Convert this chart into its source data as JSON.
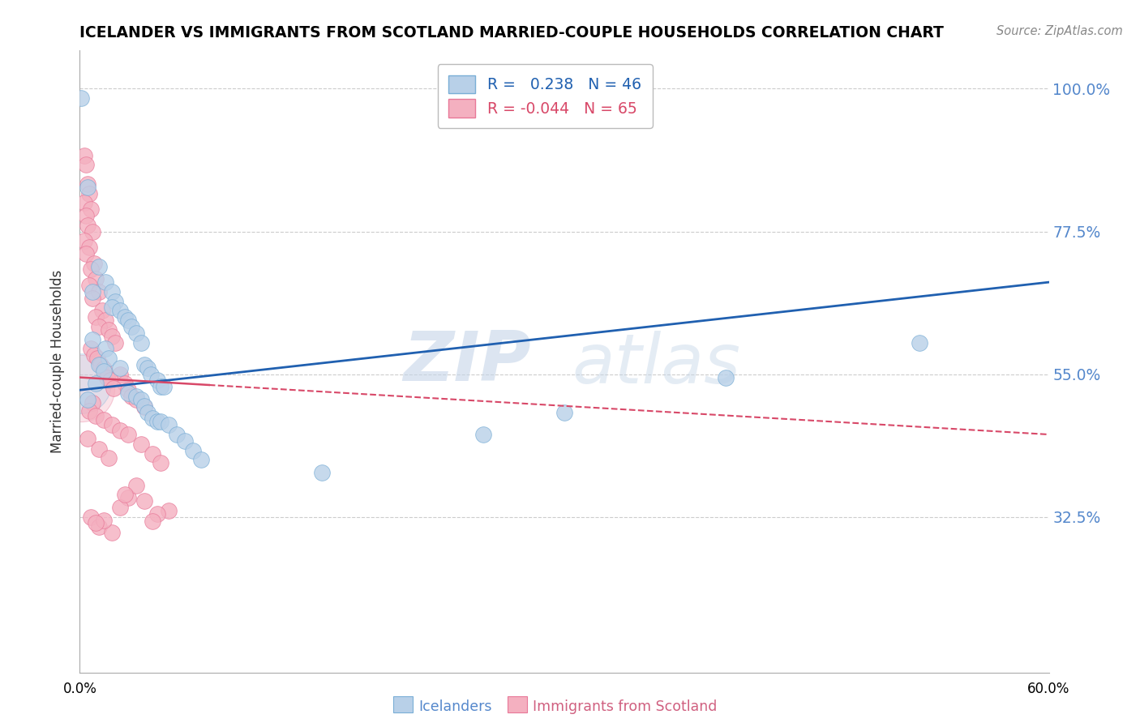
{
  "title": "ICELANDER VS IMMIGRANTS FROM SCOTLAND MARRIED-COUPLE HOUSEHOLDS CORRELATION CHART",
  "source": "Source: ZipAtlas.com",
  "ylabel": "Married-couple Households",
  "xlim": [
    0.0,
    0.6
  ],
  "ylim": [
    0.08,
    1.06
  ],
  "blue_R": 0.238,
  "blue_N": 46,
  "pink_R": -0.044,
  "pink_N": 65,
  "blue_label": "Icelanders",
  "pink_label": "Immigrants from Scotland",
  "blue_color": "#b8d0e8",
  "blue_edge": "#7aaed6",
  "pink_color": "#f4b0c0",
  "pink_edge": "#e87898",
  "blue_line_color": "#2060b0",
  "pink_line_color": "#d84868",
  "ytick_vals": [
    0.325,
    0.55,
    0.775,
    1.0
  ],
  "ytick_labels": [
    "32.5%",
    "55.0%",
    "77.5%",
    "100.0%"
  ],
  "blue_trend": [
    0.525,
    0.695
  ],
  "pink_trend": [
    0.545,
    0.455
  ],
  "blue_dots": [
    [
      0.001,
      0.985
    ],
    [
      0.005,
      0.845
    ],
    [
      0.012,
      0.72
    ],
    [
      0.016,
      0.695
    ],
    [
      0.008,
      0.68
    ],
    [
      0.02,
      0.68
    ],
    [
      0.022,
      0.665
    ],
    [
      0.02,
      0.655
    ],
    [
      0.025,
      0.65
    ],
    [
      0.028,
      0.64
    ],
    [
      0.03,
      0.635
    ],
    [
      0.032,
      0.625
    ],
    [
      0.035,
      0.615
    ],
    [
      0.008,
      0.605
    ],
    [
      0.038,
      0.6
    ],
    [
      0.016,
      0.59
    ],
    [
      0.018,
      0.575
    ],
    [
      0.012,
      0.565
    ],
    [
      0.04,
      0.565
    ],
    [
      0.042,
      0.56
    ],
    [
      0.025,
      0.56
    ],
    [
      0.015,
      0.555
    ],
    [
      0.044,
      0.55
    ],
    [
      0.048,
      0.54
    ],
    [
      0.01,
      0.535
    ],
    [
      0.05,
      0.53
    ],
    [
      0.052,
      0.53
    ],
    [
      0.03,
      0.52
    ],
    [
      0.035,
      0.515
    ],
    [
      0.005,
      0.51
    ],
    [
      0.038,
      0.51
    ],
    [
      0.04,
      0.5
    ],
    [
      0.042,
      0.49
    ],
    [
      0.045,
      0.48
    ],
    [
      0.048,
      0.475
    ],
    [
      0.05,
      0.475
    ],
    [
      0.055,
      0.47
    ],
    [
      0.06,
      0.455
    ],
    [
      0.065,
      0.445
    ],
    [
      0.07,
      0.43
    ],
    [
      0.075,
      0.415
    ],
    [
      0.15,
      0.395
    ],
    [
      0.25,
      0.455
    ],
    [
      0.3,
      0.49
    ],
    [
      0.4,
      0.545
    ],
    [
      0.52,
      0.6
    ]
  ],
  "pink_dots": [
    [
      0.003,
      0.895
    ],
    [
      0.004,
      0.88
    ],
    [
      0.005,
      0.85
    ],
    [
      0.006,
      0.835
    ],
    [
      0.003,
      0.82
    ],
    [
      0.007,
      0.81
    ],
    [
      0.004,
      0.8
    ],
    [
      0.005,
      0.785
    ],
    [
      0.008,
      0.775
    ],
    [
      0.003,
      0.76
    ],
    [
      0.006,
      0.75
    ],
    [
      0.004,
      0.74
    ],
    [
      0.009,
      0.725
    ],
    [
      0.007,
      0.715
    ],
    [
      0.01,
      0.7
    ],
    [
      0.006,
      0.69
    ],
    [
      0.012,
      0.68
    ],
    [
      0.008,
      0.67
    ],
    [
      0.014,
      0.65
    ],
    [
      0.01,
      0.64
    ],
    [
      0.016,
      0.635
    ],
    [
      0.012,
      0.625
    ],
    [
      0.018,
      0.62
    ],
    [
      0.02,
      0.61
    ],
    [
      0.022,
      0.6
    ],
    [
      0.007,
      0.59
    ],
    [
      0.009,
      0.58
    ],
    [
      0.011,
      0.575
    ],
    [
      0.013,
      0.565
    ],
    [
      0.015,
      0.558
    ],
    [
      0.025,
      0.55
    ],
    [
      0.017,
      0.545
    ],
    [
      0.019,
      0.54
    ],
    [
      0.028,
      0.535
    ],
    [
      0.021,
      0.528
    ],
    [
      0.03,
      0.525
    ],
    [
      0.032,
      0.515
    ],
    [
      0.035,
      0.51
    ],
    [
      0.008,
      0.505
    ],
    [
      0.04,
      0.498
    ],
    [
      0.006,
      0.492
    ],
    [
      0.01,
      0.485
    ],
    [
      0.015,
      0.478
    ],
    [
      0.02,
      0.47
    ],
    [
      0.025,
      0.462
    ],
    [
      0.03,
      0.455
    ],
    [
      0.005,
      0.448
    ],
    [
      0.038,
      0.44
    ],
    [
      0.012,
      0.432
    ],
    [
      0.045,
      0.425
    ],
    [
      0.018,
      0.418
    ],
    [
      0.05,
      0.41
    ],
    [
      0.04,
      0.35
    ],
    [
      0.055,
      0.335
    ],
    [
      0.007,
      0.325
    ],
    [
      0.03,
      0.355
    ],
    [
      0.012,
      0.31
    ],
    [
      0.02,
      0.3
    ],
    [
      0.035,
      0.375
    ],
    [
      0.025,
      0.34
    ],
    [
      0.015,
      0.32
    ],
    [
      0.028,
      0.36
    ],
    [
      0.048,
      0.33
    ],
    [
      0.01,
      0.316
    ],
    [
      0.045,
      0.318
    ]
  ]
}
